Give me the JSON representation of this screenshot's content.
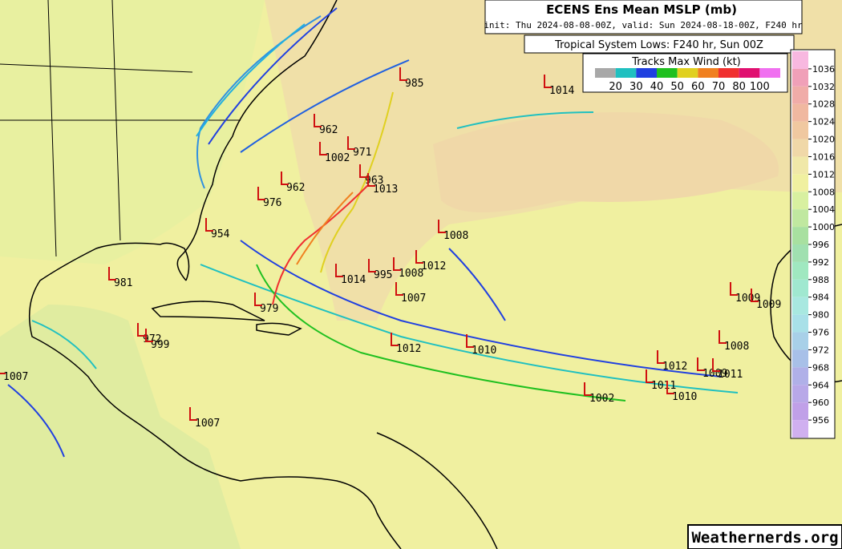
{
  "header": {
    "title": "ECENS Ens Mean MSLP (mb)",
    "subtitle": "init: Thu 2024-08-08-00Z, valid: Sun 2024-08-18-00Z, F240 hr"
  },
  "lows_box": {
    "title": "Tropical System Lows: F240 hr, Sun 00Z"
  },
  "wind_legend": {
    "title": "Tracks Max Wind (kt)",
    "colors": [
      "#a8a8a8",
      "#20c0c0",
      "#2040e0",
      "#20c020",
      "#e0d020",
      "#f08020",
      "#f03030",
      "#e01070",
      "#f070f0"
    ],
    "labels": [
      "20",
      "30",
      "40",
      "50",
      "60",
      "70",
      "80",
      "100"
    ]
  },
  "colorbar": {
    "levels": [
      "1036",
      "1032",
      "1028",
      "1024",
      "1020",
      "1016",
      "1012",
      "1008",
      "1004",
      "1000",
      "996",
      "992",
      "988",
      "984",
      "980",
      "976",
      "972",
      "968",
      "964",
      "960",
      "956"
    ],
    "colors": [
      "#f8b8e0",
      "#f0a0b8",
      "#f0aca8",
      "#f0b8a0",
      "#f0c8a0",
      "#f0d8a8",
      "#f0e8a8",
      "#f0f0a0",
      "#d8f0a0",
      "#c0e8a0",
      "#a8e0a0",
      "#a0e0b0",
      "#a0e8c0",
      "#a0e8d0",
      "#a8e8e0",
      "#a8e0e8",
      "#a8d0e8",
      "#a8c0e8",
      "#b0b0e8",
      "#b8a8e8",
      "#c0a0e8",
      "#d0b0f0"
    ]
  },
  "lows": [
    "985",
    "1014",
    "962",
    "971",
    "1002",
    "963",
    "1013",
    "962",
    "976",
    "1008",
    "1012",
    "1014",
    "995",
    "1008",
    "1007",
    "954",
    "981",
    "1012",
    "1010",
    "1009",
    "1009",
    "1008",
    "1012",
    "1002",
    "1011",
    "1010",
    "1009",
    "1011",
    "1007",
    "1007",
    "979",
    "972",
    "999"
  ],
  "footer": {
    "watermark": "Weathernerds.org"
  }
}
